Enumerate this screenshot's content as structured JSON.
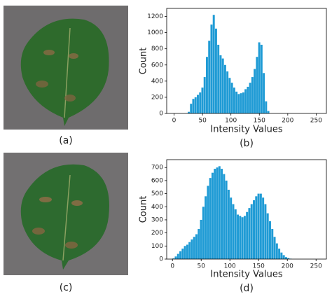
{
  "images": [
    {
      "caption": "(a)"
    },
    {
      "caption": "(c)"
    }
  ],
  "chart_data": [
    {
      "type": "histogram",
      "xlabel": "Intensity Values",
      "ylabel": "Count",
      "caption": "(b)",
      "color": "#1f9bd5",
      "bins": [
        0,
        4,
        8,
        12,
        16,
        20,
        24,
        28,
        32,
        36,
        40,
        44,
        48,
        52,
        56,
        60,
        64,
        68,
        72,
        76,
        80,
        84,
        88,
        92,
        96,
        100,
        104,
        108,
        112,
        116,
        120,
        124,
        128,
        132,
        136,
        140,
        144,
        148,
        152,
        156,
        160,
        164,
        168,
        172,
        176,
        180,
        184,
        188,
        192,
        196,
        200,
        204,
        208,
        212,
        216,
        220,
        224,
        228,
        232,
        236,
        240,
        244,
        248,
        252,
        256
      ],
      "values": [
        0,
        0,
        0,
        0,
        0,
        0,
        20,
        120,
        180,
        200,
        230,
        260,
        320,
        450,
        700,
        900,
        1100,
        1220,
        1050,
        850,
        720,
        680,
        600,
        520,
        440,
        380,
        320,
        270,
        240,
        250,
        260,
        300,
        330,
        380,
        450,
        550,
        700,
        880,
        850,
        500,
        150,
        30,
        0,
        0,
        0,
        0,
        0,
        0,
        0,
        0,
        0,
        0,
        0,
        0,
        0,
        0,
        0,
        0,
        0,
        0,
        0,
        0,
        0,
        0
      ],
      "xlim": [
        -13,
        268
      ],
      "ylim": [
        0,
        1300
      ],
      "xticks": [
        0,
        50,
        100,
        150,
        200,
        250
      ],
      "yticks": [
        0,
        200,
        400,
        600,
        800,
        1000,
        1200
      ]
    },
    {
      "type": "histogram",
      "xlabel": "Intensity Values",
      "ylabel": "Count",
      "caption": "(d)",
      "color": "#1f9bd5",
      "bins": [
        0,
        4,
        8,
        12,
        16,
        20,
        24,
        28,
        32,
        36,
        40,
        44,
        48,
        52,
        56,
        60,
        64,
        68,
        72,
        76,
        80,
        84,
        88,
        92,
        96,
        100,
        104,
        108,
        112,
        116,
        120,
        124,
        128,
        132,
        136,
        140,
        144,
        148,
        152,
        156,
        160,
        164,
        168,
        172,
        176,
        180,
        184,
        188,
        192,
        196,
        200,
        204,
        208,
        212,
        216,
        220,
        224,
        228,
        232,
        236,
        240,
        244,
        248,
        252,
        256
      ],
      "values": [
        5,
        20,
        40,
        60,
        80,
        100,
        110,
        130,
        150,
        170,
        190,
        230,
        300,
        400,
        480,
        560,
        620,
        660,
        690,
        700,
        710,
        690,
        650,
        600,
        530,
        470,
        420,
        380,
        340,
        330,
        320,
        330,
        360,
        390,
        420,
        450,
        480,
        500,
        500,
        470,
        420,
        350,
        290,
        230,
        170,
        120,
        80,
        50,
        30,
        15,
        8,
        3,
        0,
        0,
        0,
        0,
        0,
        0,
        0,
        0,
        0,
        0,
        0,
        0
      ],
      "xlim": [
        -10,
        268
      ],
      "ylim": [
        0,
        760
      ],
      "xticks": [
        0,
        50,
        100,
        150,
        200,
        250
      ],
      "yticks": [
        0,
        100,
        200,
        300,
        400,
        500,
        600,
        700
      ]
    }
  ]
}
